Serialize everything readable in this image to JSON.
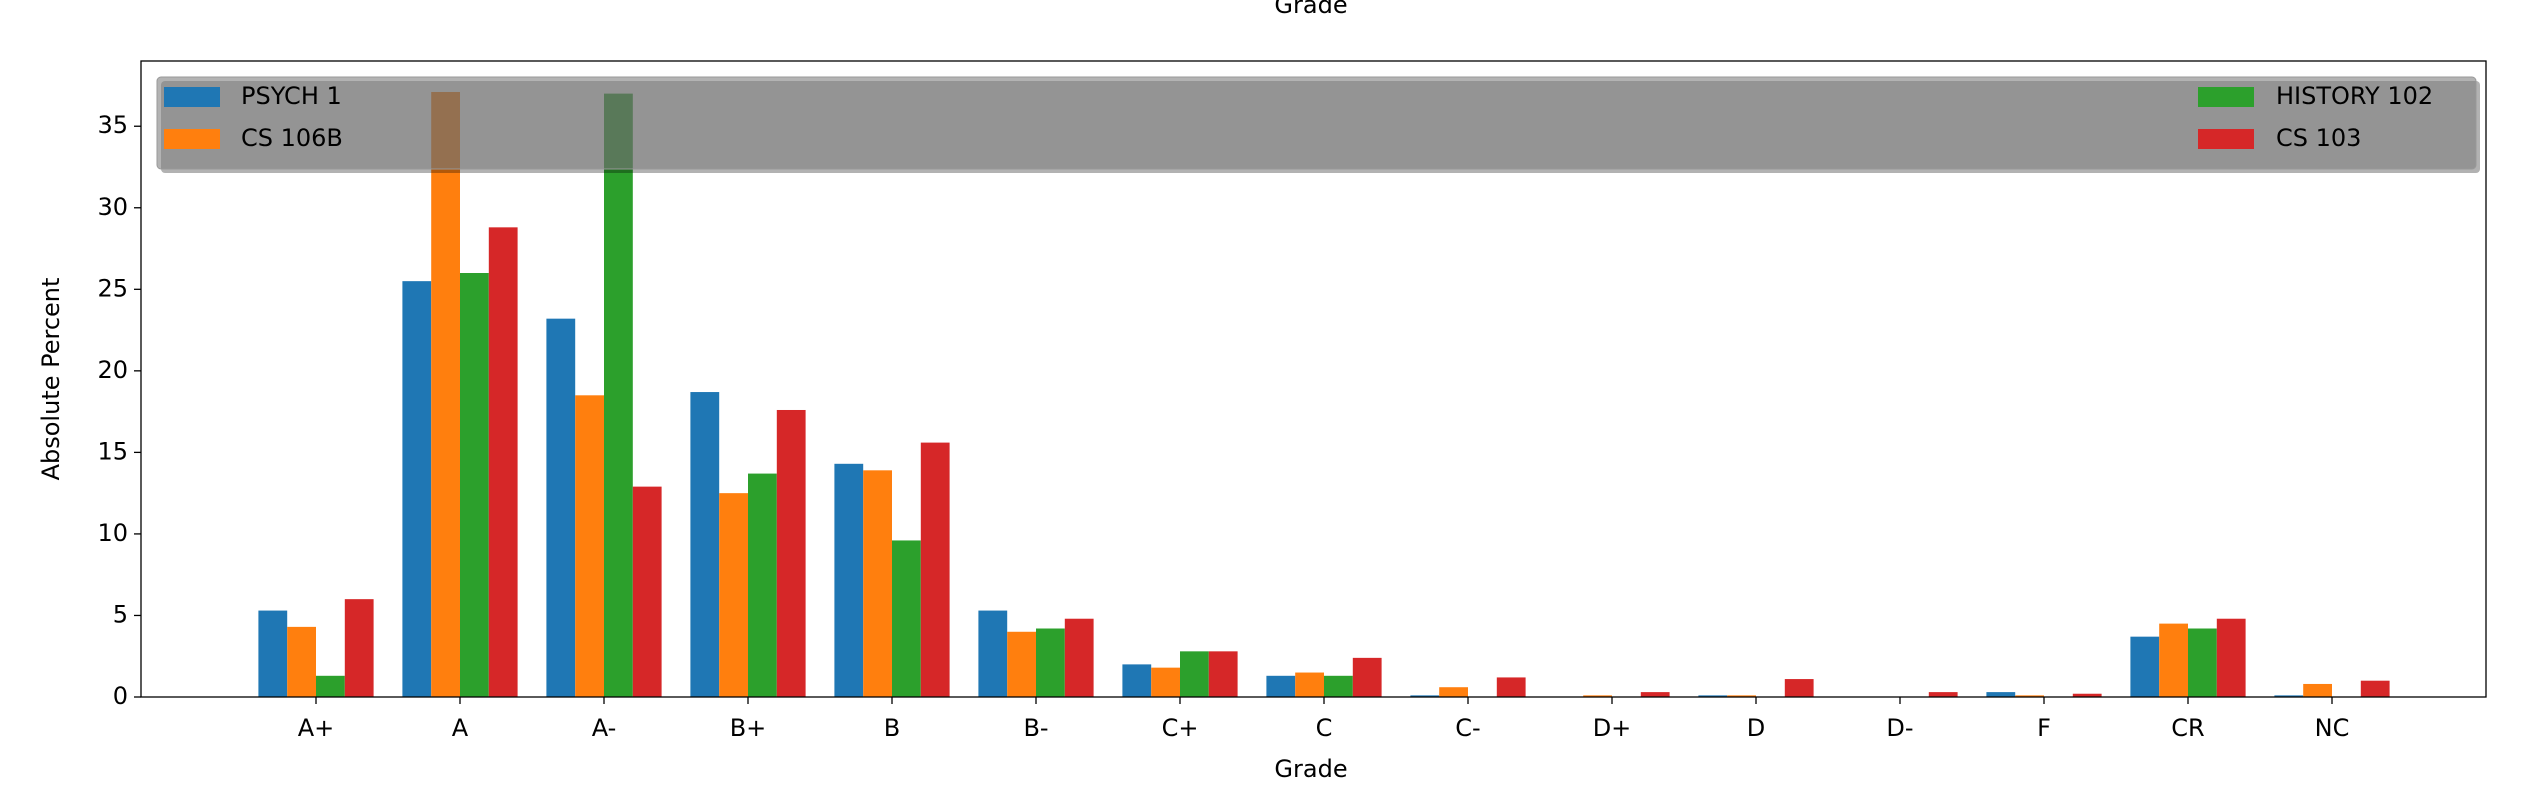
{
  "chart_data": {
    "type": "bar",
    "title": "Grade",
    "xlabel": "Grade",
    "ylabel": "Absolute Percent",
    "categories": [
      "A+",
      "A",
      "A-",
      "B+",
      "B",
      "B-",
      "C+",
      "C",
      "C-",
      "D+",
      "D",
      "D-",
      "F",
      "CR",
      "NC"
    ],
    "series": [
      {
        "name": "PSYCH 1",
        "color": "#1f77b4",
        "values": [
          5.3,
          25.5,
          23.2,
          18.7,
          14.3,
          5.3,
          2.0,
          1.3,
          0.1,
          0,
          0.1,
          0,
          0.3,
          3.7,
          0.1
        ]
      },
      {
        "name": "CS 106B",
        "color": "#ff7f0e",
        "values": [
          4.3,
          37.1,
          18.5,
          12.5,
          13.9,
          4.0,
          1.8,
          1.5,
          0.6,
          0.1,
          0.1,
          0,
          0.1,
          4.5,
          0.8
        ]
      },
      {
        "name": "HISTORY 102",
        "color": "#2ca02c",
        "values": [
          1.3,
          26.0,
          37.0,
          13.7,
          9.6,
          4.2,
          2.8,
          1.3,
          0,
          0,
          0,
          0,
          0,
          4.2,
          0
        ]
      },
      {
        "name": "CS 103",
        "color": "#d62728",
        "values": [
          6.0,
          28.8,
          12.9,
          17.6,
          15.6,
          4.8,
          2.8,
          2.4,
          1.2,
          0.3,
          1.1,
          0.3,
          0.2,
          4.8,
          1.0
        ]
      }
    ],
    "ylim": [
      0,
      39
    ],
    "yticks": [
      0,
      5,
      10,
      15,
      20,
      25,
      30,
      35
    ],
    "grid": false,
    "legend": "upper center"
  }
}
